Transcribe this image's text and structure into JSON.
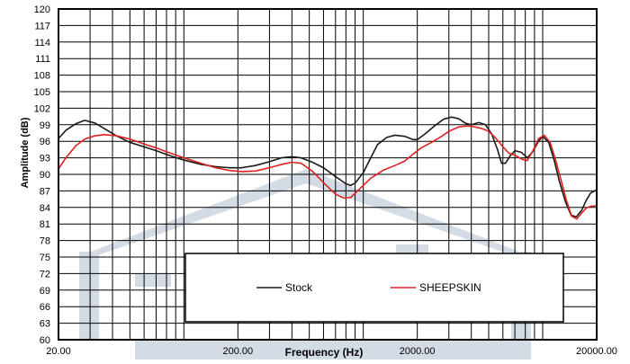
{
  "chart_data": {
    "type": "line",
    "xlabel": "Frequency (Hz)",
    "ylabel": "Amplitude (dB)",
    "x_scale": "log",
    "xlim": [
      20,
      20000
    ],
    "ylim": [
      60,
      120
    ],
    "grid": true,
    "legend_position": "bottom-center",
    "x_tick_labels": [
      {
        "value": 20,
        "label": "20.00"
      },
      {
        "value": 200,
        "label": "200.00"
      },
      {
        "value": 2000,
        "label": "2000.00"
      },
      {
        "value": 20000,
        "label": "20000.00"
      }
    ],
    "y_tick_labels": [
      {
        "value": 120,
        "label": "120"
      },
      {
        "value": 117,
        "label": "117"
      },
      {
        "value": 114,
        "label": "114"
      },
      {
        "value": 111,
        "label": "111"
      },
      {
        "value": 108,
        "label": "108"
      },
      {
        "value": 105,
        "label": "105"
      },
      {
        "value": 102,
        "label": "102"
      },
      {
        "value": 99,
        "label": "99"
      },
      {
        "value": 96,
        "label": "96"
      },
      {
        "value": 93,
        "label": "93"
      },
      {
        "value": 90,
        "label": "90"
      },
      {
        "value": 87,
        "label": "87"
      },
      {
        "value": 84,
        "label": "84"
      },
      {
        "value": 81,
        "label": "81"
      },
      {
        "value": 78,
        "label": "78"
      },
      {
        "value": 75,
        "label": "75"
      },
      {
        "value": 72,
        "label": "72"
      },
      {
        "value": 69,
        "label": "69"
      },
      {
        "value": 66,
        "label": "66"
      },
      {
        "value": 63,
        "label": "63"
      },
      {
        "value": 60,
        "label": "60"
      }
    ],
    "series": [
      {
        "name": "Stock",
        "color": "#1a1a1a",
        "points": [
          [
            20,
            96.5
          ],
          [
            22,
            98
          ],
          [
            25,
            99.2
          ],
          [
            28,
            99.8
          ],
          [
            32,
            99.3
          ],
          [
            36,
            98.3
          ],
          [
            42,
            97
          ],
          [
            50,
            95.8
          ],
          [
            60,
            95
          ],
          [
            70,
            94.3
          ],
          [
            85,
            93.3
          ],
          [
            100,
            92.6
          ],
          [
            125,
            91.8
          ],
          [
            150,
            91.4
          ],
          [
            180,
            91.2
          ],
          [
            210,
            91.2
          ],
          [
            250,
            91.6
          ],
          [
            300,
            92.3
          ],
          [
            350,
            93
          ],
          [
            400,
            93.2
          ],
          [
            450,
            93
          ],
          [
            520,
            92.2
          ],
          [
            600,
            91.2
          ],
          [
            700,
            89.6
          ],
          [
            800,
            88.3
          ],
          [
            850,
            88
          ],
          [
            900,
            88.4
          ],
          [
            1000,
            90.3
          ],
          [
            1100,
            93
          ],
          [
            1200,
            95.4
          ],
          [
            1350,
            96.7
          ],
          [
            1500,
            97.1
          ],
          [
            1700,
            96.9
          ],
          [
            1900,
            96.3
          ],
          [
            2000,
            96.3
          ],
          [
            2200,
            97.3
          ],
          [
            2500,
            98.8
          ],
          [
            2800,
            100
          ],
          [
            3100,
            100.4
          ],
          [
            3400,
            100.1
          ],
          [
            3700,
            99.3
          ],
          [
            4000,
            99
          ],
          [
            4400,
            99.4
          ],
          [
            4800,
            99
          ],
          [
            5200,
            97.3
          ],
          [
            5600,
            94.5
          ],
          [
            5900,
            92
          ],
          [
            6200,
            92
          ],
          [
            6600,
            93.4
          ],
          [
            7000,
            94.3
          ],
          [
            7600,
            94
          ],
          [
            8200,
            93
          ],
          [
            8800,
            94.1
          ],
          [
            9400,
            95.8
          ],
          [
            10000,
            96.9
          ],
          [
            10800,
            95.8
          ],
          [
            11600,
            92.5
          ],
          [
            12400,
            88.7
          ],
          [
            13400,
            85
          ],
          [
            14400,
            82.6
          ],
          [
            15400,
            82.3
          ],
          [
            16500,
            83.5
          ],
          [
            17500,
            85.3
          ],
          [
            18500,
            86.6
          ],
          [
            20000,
            87.2
          ]
        ]
      },
      {
        "name": "SHEEPSKIN",
        "color": "#e0201f",
        "points": [
          [
            20,
            91
          ],
          [
            22,
            93
          ],
          [
            25,
            95.2
          ],
          [
            28,
            96.4
          ],
          [
            32,
            97
          ],
          [
            36,
            97.2
          ],
          [
            42,
            97
          ],
          [
            50,
            96.4
          ],
          [
            60,
            95.5
          ],
          [
            70,
            94.8
          ],
          [
            85,
            93.8
          ],
          [
            100,
            93
          ],
          [
            125,
            92
          ],
          [
            150,
            91.2
          ],
          [
            180,
            90.7
          ],
          [
            210,
            90.5
          ],
          [
            250,
            90.6
          ],
          [
            300,
            91.2
          ],
          [
            350,
            91.8
          ],
          [
            400,
            92.2
          ],
          [
            450,
            92
          ],
          [
            520,
            90.6
          ],
          [
            600,
            88.5
          ],
          [
            700,
            86.4
          ],
          [
            780,
            85.7
          ],
          [
            850,
            85.8
          ],
          [
            950,
            87.3
          ],
          [
            1100,
            89.3
          ],
          [
            1300,
            90.8
          ],
          [
            1500,
            91.6
          ],
          [
            1700,
            92.4
          ],
          [
            1900,
            93.7
          ],
          [
            2100,
            94.8
          ],
          [
            2400,
            95.8
          ],
          [
            2700,
            96.8
          ],
          [
            3000,
            97.8
          ],
          [
            3400,
            98.6
          ],
          [
            3800,
            98.8
          ],
          [
            4200,
            98.6
          ],
          [
            4600,
            98.3
          ],
          [
            5000,
            97.8
          ],
          [
            5500,
            96.5
          ],
          [
            6000,
            95
          ],
          [
            6500,
            93.8
          ],
          [
            7000,
            93.5
          ],
          [
            7600,
            92.8
          ],
          [
            8200,
            92.5
          ],
          [
            8800,
            94.2
          ],
          [
            9500,
            96.5
          ],
          [
            10200,
            97.1
          ],
          [
            11000,
            95.8
          ],
          [
            11800,
            92.6
          ],
          [
            12600,
            89.2
          ],
          [
            13500,
            85.5
          ],
          [
            14500,
            82.4
          ],
          [
            15500,
            81.9
          ],
          [
            16500,
            83
          ],
          [
            17500,
            83.9
          ],
          [
            18500,
            84.2
          ],
          [
            20000,
            84.3
          ]
        ]
      }
    ]
  }
}
